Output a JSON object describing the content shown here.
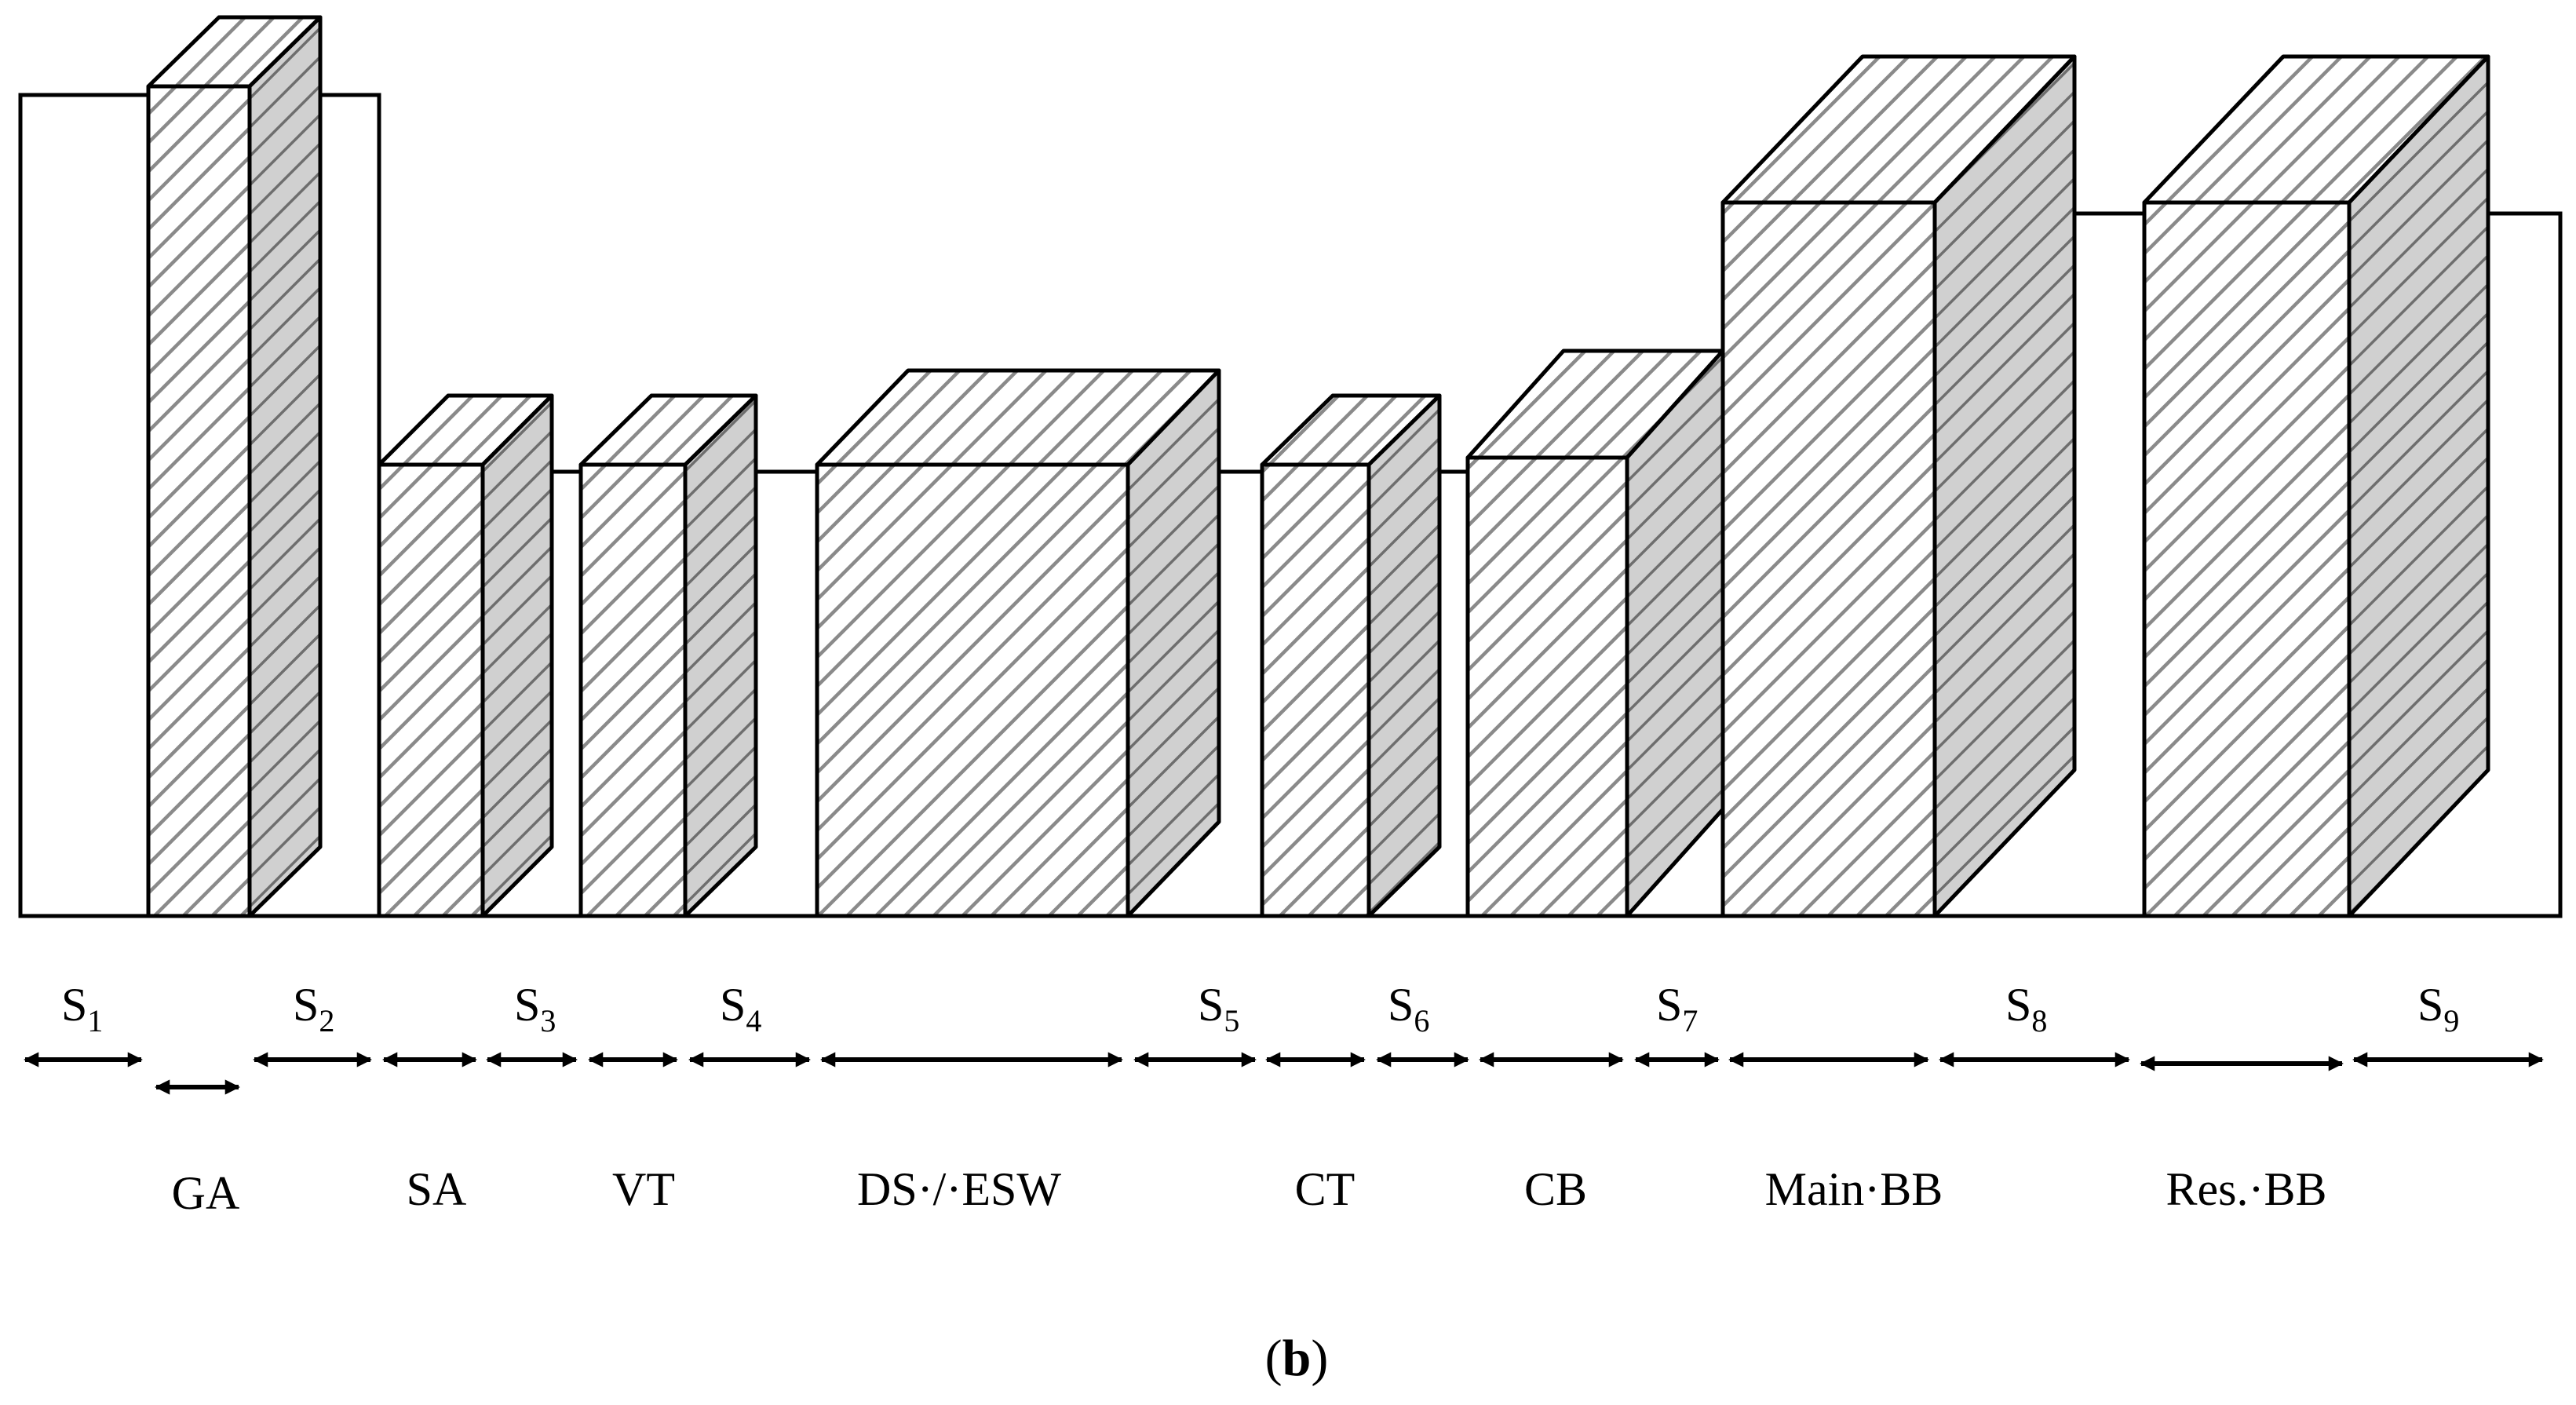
{
  "diagram": {
    "caption": {
      "open": "(",
      "letter": "b",
      "close": ")"
    },
    "devices": [
      {
        "id": "ga",
        "label": "GA"
      },
      {
        "id": "sa",
        "label": "SA"
      },
      {
        "id": "vt",
        "label": "VT"
      },
      {
        "id": "ds",
        "label": "DS·/·ESW"
      },
      {
        "id": "ct",
        "label": "CT"
      },
      {
        "id": "cb",
        "label": "CB"
      },
      {
        "id": "mbb",
        "label": "Main·BB"
      },
      {
        "id": "rbb",
        "label": "Res.·BB"
      }
    ],
    "spacings": [
      {
        "id": "s1",
        "symbol": "S",
        "sub": "1"
      },
      {
        "id": "s2",
        "symbol": "S",
        "sub": "2"
      },
      {
        "id": "s3",
        "symbol": "S",
        "sub": "3"
      },
      {
        "id": "s4",
        "symbol": "S",
        "sub": "4"
      },
      {
        "id": "s5",
        "symbol": "S",
        "sub": "5"
      },
      {
        "id": "s6",
        "symbol": "S",
        "sub": "6"
      },
      {
        "id": "s7",
        "symbol": "S",
        "sub": "7"
      },
      {
        "id": "s8",
        "symbol": "S",
        "sub": "8"
      },
      {
        "id": "s9",
        "symbol": "S",
        "sub": "9"
      }
    ],
    "colors": {
      "stroke": "#000000",
      "fill": "#ffffff",
      "hatch_front": "#8a8a8a",
      "hatch_side_bg": "#d0d0d0",
      "hatch_side": "#6e6e6e"
    }
  }
}
